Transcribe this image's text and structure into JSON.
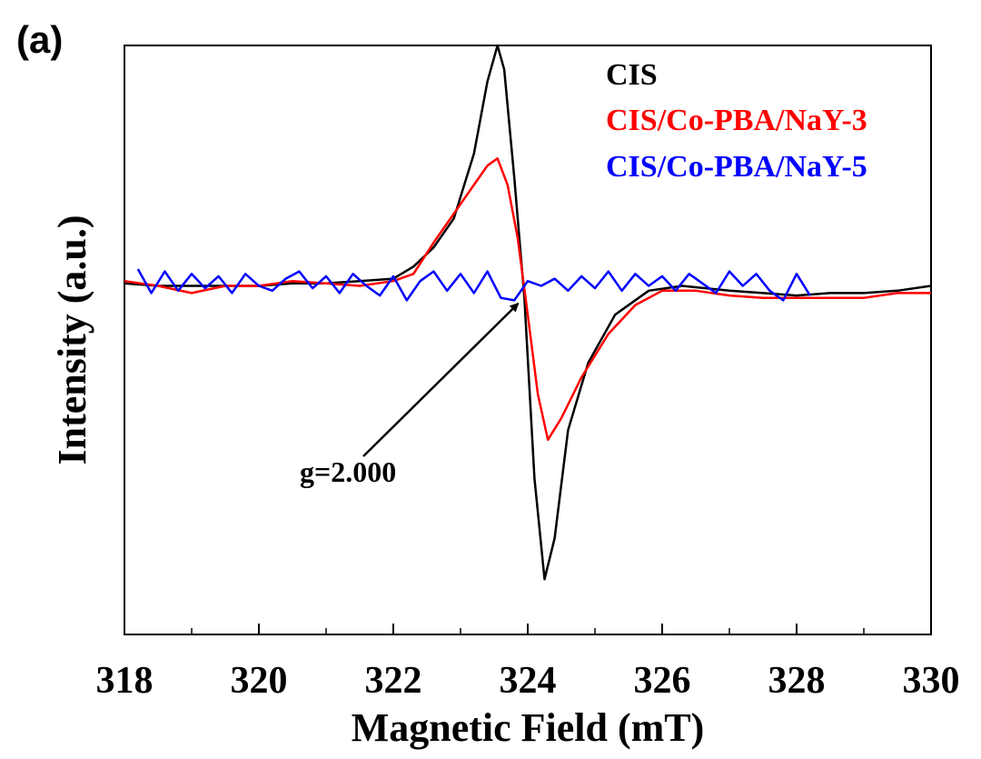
{
  "panel_label": "(a)",
  "colors": {
    "cis": "#000000",
    "nay3": "#ff0000",
    "nay5": "#0000ff"
  },
  "chart_data": {
    "type": "line",
    "xlabel": "Magnetic Field (mT)",
    "ylabel": "Intensity (a.u.)",
    "xlim": [
      318,
      330
    ],
    "ylim": [
      -1.45,
      1.0
    ],
    "xticks": [
      318,
      320,
      322,
      324,
      326,
      328,
      330
    ],
    "grid": false,
    "legend_position": "top-right",
    "annotation": {
      "text": "g=2.000",
      "arrow_to": [
        323.9,
        -0.05
      ]
    },
    "series": [
      {
        "name": "CIS",
        "color": "#000000",
        "x": [
          318.0,
          318.5,
          319.0,
          319.5,
          320.0,
          320.5,
          321.0,
          321.5,
          322.0,
          322.3,
          322.6,
          322.9,
          323.2,
          323.4,
          323.55,
          323.65,
          323.8,
          323.95,
          324.1,
          324.25,
          324.4,
          324.6,
          324.9,
          325.3,
          325.8,
          326.3,
          327.0,
          327.5,
          328.0,
          328.5,
          329.0,
          329.5,
          330.0
        ],
        "y": [
          0.01,
          0.0,
          0.0,
          0.0,
          0.0,
          0.01,
          0.01,
          0.02,
          0.03,
          0.08,
          0.16,
          0.28,
          0.55,
          0.85,
          1.0,
          0.9,
          0.45,
          -0.05,
          -0.8,
          -1.22,
          -1.05,
          -0.6,
          -0.32,
          -0.12,
          -0.02,
          0.0,
          -0.02,
          -0.03,
          -0.04,
          -0.03,
          -0.03,
          -0.02,
          0.0
        ]
      },
      {
        "name": "CIS/Co-PBA/NaY-3",
        "color": "#ff0000",
        "x": [
          318.0,
          318.5,
          319.0,
          319.5,
          320.0,
          320.5,
          321.0,
          321.5,
          322.0,
          322.3,
          322.6,
          322.9,
          323.2,
          323.4,
          323.55,
          323.7,
          323.85,
          324.0,
          324.15,
          324.3,
          324.5,
          324.8,
          325.2,
          325.6,
          326.0,
          326.5,
          327.0,
          327.5,
          328.0,
          328.5,
          329.0,
          329.5,
          330.0
        ],
        "y": [
          0.02,
          0.0,
          -0.03,
          0.0,
          0.0,
          0.02,
          0.01,
          0.0,
          0.02,
          0.05,
          0.18,
          0.3,
          0.42,
          0.5,
          0.53,
          0.42,
          0.2,
          -0.12,
          -0.45,
          -0.64,
          -0.55,
          -0.38,
          -0.2,
          -0.08,
          -0.02,
          -0.02,
          -0.04,
          -0.05,
          -0.05,
          -0.05,
          -0.05,
          -0.03,
          -0.03
        ]
      },
      {
        "name": "CIS/Co-PBA/NaY-5",
        "color": "#0000ff",
        "x": [
          318.2,
          318.4,
          318.6,
          318.8,
          319.0,
          319.2,
          319.4,
          319.6,
          319.8,
          320.0,
          320.2,
          320.4,
          320.6,
          320.8,
          321.0,
          321.2,
          321.4,
          321.6,
          321.8,
          322.0,
          322.2,
          322.4,
          322.6,
          322.8,
          323.0,
          323.2,
          323.4,
          323.6,
          323.8,
          324.0,
          324.2,
          324.4,
          324.6,
          324.8,
          325.0,
          325.2,
          325.4,
          325.6,
          325.8,
          326.0,
          326.2,
          326.4,
          326.6,
          326.8,
          327.0,
          327.2,
          327.4,
          327.6,
          327.8,
          328.0,
          328.2
        ],
        "y": [
          0.07,
          -0.03,
          0.06,
          -0.02,
          0.05,
          -0.01,
          0.04,
          -0.03,
          0.05,
          0.0,
          -0.02,
          0.03,
          0.06,
          -0.01,
          0.04,
          -0.03,
          0.05,
          0.0,
          -0.04,
          0.04,
          -0.06,
          0.02,
          0.06,
          -0.02,
          0.05,
          -0.03,
          0.06,
          -0.05,
          -0.06,
          0.02,
          0.0,
          0.03,
          -0.02,
          0.04,
          -0.01,
          0.06,
          -0.02,
          0.05,
          0.0,
          0.04,
          -0.02,
          0.05,
          0.01,
          -0.03,
          0.06,
          0.0,
          0.05,
          -0.02,
          -0.06,
          0.05,
          -0.04
        ]
      }
    ]
  }
}
